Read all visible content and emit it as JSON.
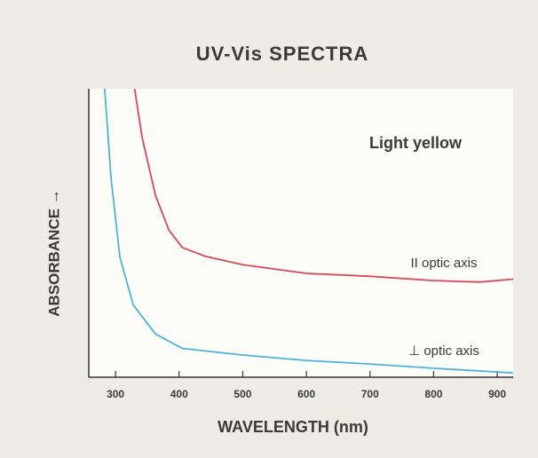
{
  "chart_data": {
    "type": "line",
    "title": "UV-Vis SPECTRA",
    "xlabel": "WAVELENGTH (nm)",
    "ylabel": "ABSORBANCE →",
    "annotation": "Light yellow",
    "xlim": [
      258,
      925
    ],
    "xticks": [
      300,
      400,
      500,
      600,
      700,
      800,
      900
    ],
    "ylim": [
      0,
      1
    ],
    "series": [
      {
        "name": "II optic axis",
        "color": "#d9485a",
        "x": [
          330,
          342,
          363,
          384,
          405,
          440,
          500,
          600,
          700,
          800,
          872,
          925
        ],
        "values": [
          1.0,
          0.83,
          0.63,
          0.51,
          0.45,
          0.42,
          0.39,
          0.36,
          0.35,
          0.335,
          0.33,
          0.34
        ]
      },
      {
        "name": "⊥ optic axis",
        "color": "#4fb3d9",
        "x": [
          283,
          293,
          307,
          328,
          363,
          405,
          500,
          600,
          700,
          800,
          925
        ],
        "values": [
          1.0,
          0.69,
          0.415,
          0.25,
          0.15,
          0.1,
          0.077,
          0.058,
          0.046,
          0.031,
          0.015
        ]
      }
    ]
  }
}
